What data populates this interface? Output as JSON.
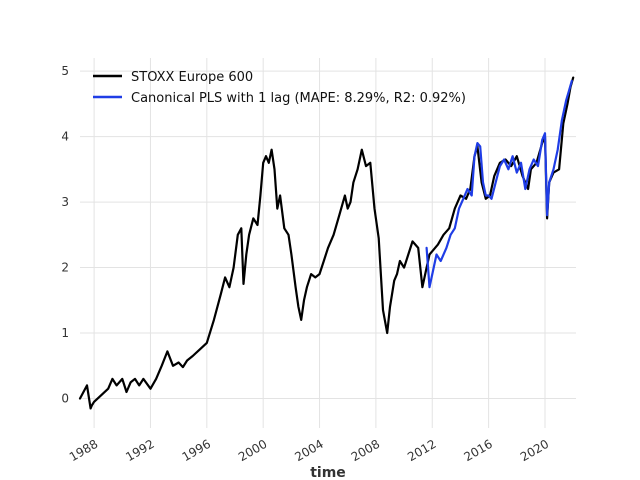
{
  "chart_data": {
    "type": "line",
    "title": "",
    "xlabel": "time",
    "ylabel": "",
    "xlim": [
      1987.0,
      2022.2
    ],
    "ylim": [
      -0.45,
      5.2
    ],
    "x_ticks": [
      1988,
      1992,
      1996,
      2000,
      2004,
      2008,
      2012,
      2016,
      2020
    ],
    "x_tick_labels": [
      "1988",
      "1992",
      "1996",
      "2000",
      "2004",
      "2008",
      "2012",
      "2016",
      "2020"
    ],
    "y_ticks": [
      0,
      1,
      2,
      3,
      4,
      5
    ],
    "y_tick_labels": [
      "0",
      "1",
      "2",
      "3",
      "4",
      "5"
    ],
    "grid": true,
    "legend_position": "top-left",
    "series": [
      {
        "name": "STOXX Europe 600",
        "color": "#000000",
        "x": [
          1987.0,
          1987.5,
          1987.75,
          1987.85,
          1988.0,
          1988.5,
          1989.0,
          1989.3,
          1989.6,
          1990.0,
          1990.3,
          1990.6,
          1990.9,
          1991.2,
          1991.5,
          1992.0,
          1992.4,
          1992.8,
          1993.2,
          1993.6,
          1994.0,
          1994.3,
          1994.6,
          1995.0,
          1995.5,
          1996.0,
          1996.5,
          1997.0,
          1997.3,
          1997.6,
          1997.9,
          1998.2,
          1998.45,
          1998.6,
          1998.8,
          1999.0,
          1999.3,
          1999.6,
          1999.8,
          2000.0,
          2000.2,
          2000.4,
          2000.6,
          2000.8,
          2001.0,
          2001.2,
          2001.5,
          2001.8,
          2002.0,
          2002.3,
          2002.5,
          2002.7,
          2002.9,
          2003.1,
          2003.4,
          2003.7,
          2004.0,
          2004.3,
          2004.6,
          2005.0,
          2005.4,
          2005.8,
          2006.0,
          2006.2,
          2006.4,
          2006.7,
          2007.0,
          2007.3,
          2007.6,
          2007.9,
          2008.2,
          2008.5,
          2008.8,
          2009.0,
          2009.15,
          2009.3,
          2009.5,
          2009.7,
          2010.0,
          2010.3,
          2010.6,
          2011.0,
          2011.3,
          2011.6,
          2011.8,
          2012.0,
          2012.4,
          2012.8,
          2013.2,
          2013.6,
          2014.0,
          2014.4,
          2014.7,
          2015.0,
          2015.2,
          2015.5,
          2015.8,
          2016.1,
          2016.4,
          2016.8,
          2017.2,
          2017.6,
          2018.0,
          2018.4,
          2018.8,
          2019.0,
          2019.4,
          2019.8,
          2020.0,
          2020.15,
          2020.3,
          2020.6,
          2021.0,
          2021.3,
          2021.6,
          2021.8,
          2022.0
        ],
        "values": [
          0.0,
          0.2,
          -0.15,
          -0.1,
          -0.05,
          0.05,
          0.15,
          0.3,
          0.2,
          0.3,
          0.1,
          0.25,
          0.3,
          0.2,
          0.3,
          0.15,
          0.3,
          0.5,
          0.72,
          0.5,
          0.55,
          0.48,
          0.58,
          0.65,
          0.75,
          0.85,
          1.2,
          1.6,
          1.85,
          1.7,
          2.0,
          2.5,
          2.6,
          1.75,
          2.2,
          2.5,
          2.75,
          2.65,
          3.1,
          3.6,
          3.7,
          3.6,
          3.8,
          3.5,
          2.9,
          3.1,
          2.6,
          2.5,
          2.2,
          1.7,
          1.4,
          1.2,
          1.5,
          1.7,
          1.9,
          1.85,
          1.9,
          2.1,
          2.3,
          2.5,
          2.8,
          3.1,
          2.9,
          3.0,
          3.3,
          3.5,
          3.8,
          3.55,
          3.6,
          2.9,
          2.45,
          1.35,
          1.0,
          1.4,
          1.6,
          1.8,
          1.9,
          2.1,
          2.0,
          2.2,
          2.4,
          2.3,
          1.7,
          2.0,
          2.2,
          2.25,
          2.35,
          2.5,
          2.6,
          2.9,
          3.1,
          3.05,
          3.2,
          3.7,
          3.85,
          3.3,
          3.05,
          3.1,
          3.4,
          3.6,
          3.65,
          3.55,
          3.7,
          3.4,
          3.2,
          3.5,
          3.6,
          3.9,
          4.0,
          2.75,
          3.3,
          3.45,
          3.5,
          4.2,
          4.5,
          4.75,
          4.9
        ]
      },
      {
        "name": "Canonical PLS with 1 lag (MAPE: 8.29%, R2: 0.92%)",
        "color": "#1f3de6",
        "x": [
          2011.6,
          2011.8,
          2012.0,
          2012.3,
          2012.6,
          2013.0,
          2013.3,
          2013.6,
          2013.9,
          2014.2,
          2014.5,
          2014.8,
          2015.0,
          2015.2,
          2015.4,
          2015.6,
          2015.8,
          2016.0,
          2016.2,
          2016.5,
          2016.8,
          2017.1,
          2017.4,
          2017.7,
          2018.0,
          2018.3,
          2018.6,
          2018.9,
          2019.2,
          2019.5,
          2019.8,
          2020.0,
          2020.15,
          2020.3,
          2020.6,
          2020.9,
          2021.2,
          2021.5,
          2021.7,
          2021.9
        ],
        "values": [
          2.3,
          1.7,
          1.9,
          2.2,
          2.1,
          2.3,
          2.5,
          2.6,
          2.9,
          3.05,
          3.2,
          3.1,
          3.7,
          3.9,
          3.85,
          3.3,
          3.1,
          3.1,
          3.05,
          3.3,
          3.55,
          3.65,
          3.5,
          3.7,
          3.45,
          3.6,
          3.2,
          3.5,
          3.65,
          3.55,
          3.95,
          4.05,
          2.8,
          3.3,
          3.5,
          3.8,
          4.25,
          4.55,
          4.7,
          4.85
        ]
      }
    ]
  }
}
